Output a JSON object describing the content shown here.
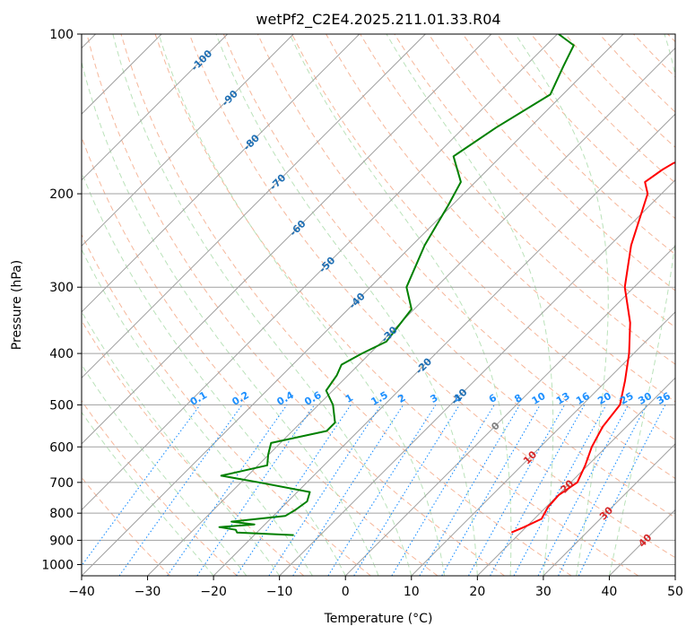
{
  "chart_data": {
    "type": "line",
    "title": "wetPf2_C2E4.2025.211.01.33.R04",
    "xlabel": "Temperature (°C)",
    "ylabel": "Pressure (hPa)",
    "xlim": [
      -40,
      50
    ],
    "ylim": [
      1050,
      100
    ],
    "y_scale": "log",
    "grid": true,
    "x_ticks": [
      -40,
      -30,
      -20,
      -10,
      0,
      10,
      20,
      30,
      40,
      50
    ],
    "y_ticks": [
      100,
      200,
      300,
      400,
      500,
      600,
      700,
      800,
      900,
      1000
    ],
    "colors": {
      "temperature": "#e41a1c",
      "dewpoint": "#008000",
      "dry_adiabat": "#f4a582",
      "moist_adiabat": "#b2dfb2",
      "mixing_ratio": "#1e90ff",
      "isotherm": "#a0a0a0",
      "isotherm_label": "#1f6fb4",
      "warm_label": "#d62728",
      "zero_label": "#808080"
    },
    "series": [
      {
        "key": "temperature",
        "color": "#ff0000",
        "points": [
          [
            18.6,
            870
          ],
          [
            19.7,
            850
          ],
          [
            21.1,
            820
          ],
          [
            20.3,
            780
          ],
          [
            20.1,
            740
          ],
          [
            21.0,
            700
          ],
          [
            19.6,
            650
          ],
          [
            17.8,
            600
          ],
          [
            16.4,
            550
          ],
          [
            15.7,
            500
          ],
          [
            12.8,
            450
          ],
          [
            9.3,
            400
          ],
          [
            4.8,
            350
          ],
          [
            -1.4,
            300
          ],
          [
            -6.8,
            250
          ],
          [
            -12.1,
            200
          ],
          [
            -14.3,
            190
          ],
          [
            -13.5,
            180
          ],
          [
            -12.8,
            175
          ],
          [
            -10.0,
            170
          ],
          [
            -9.8,
            165
          ],
          [
            -16.9,
            150
          ],
          [
            -20.5,
            125
          ],
          [
            -24.1,
            115
          ],
          [
            -29.1,
            100
          ]
        ]
      },
      {
        "key": "dewpoint",
        "color": "#008000",
        "points": [
          [
            -14.0,
            880
          ],
          [
            -23.0,
            870
          ],
          [
            -23.6,
            860
          ],
          [
            -26.5,
            850
          ],
          [
            -21.6,
            840
          ],
          [
            -25.5,
            830
          ],
          [
            -18.2,
            810
          ],
          [
            -17.6,
            790
          ],
          [
            -17.1,
            760
          ],
          [
            -18.1,
            730
          ],
          [
            -27.3,
            700
          ],
          [
            -34.0,
            680
          ],
          [
            -28.6,
            650
          ],
          [
            -30.1,
            620
          ],
          [
            -31.4,
            590
          ],
          [
            -24.8,
            560
          ],
          [
            -24.8,
            540
          ],
          [
            -27.8,
            500
          ],
          [
            -31.0,
            470
          ],
          [
            -31.7,
            440
          ],
          [
            -32.6,
            420
          ],
          [
            -31.2,
            400
          ],
          [
            -29.3,
            380
          ],
          [
            -30.4,
            330
          ],
          [
            -34.5,
            300
          ],
          [
            -38.1,
            250
          ],
          [
            -40.6,
            210
          ],
          [
            -42.2,
            190
          ],
          [
            -47.2,
            170
          ],
          [
            -45.1,
            150
          ],
          [
            -41.9,
            130
          ],
          [
            -44.2,
            115
          ],
          [
            -45.8,
            105
          ],
          [
            -49.8,
            100
          ]
        ]
      }
    ],
    "isotherm_labels": [
      "-100",
      "-90",
      "-80",
      "-70",
      "-60",
      "-50",
      "-40",
      "-30",
      "-20",
      "-10",
      "0",
      "10",
      "20",
      "30",
      "40"
    ],
    "isotherm_label_values": [
      -100,
      -90,
      -80,
      -70,
      -60,
      -50,
      -40,
      -30,
      -20,
      -10,
      0,
      10,
      20,
      30,
      40
    ],
    "mixing_ratio_labels": [
      "0.1",
      "0.2",
      "0.4",
      "0.6",
      "1",
      "1.5",
      "2",
      "3",
      "4",
      "6",
      "8",
      "10",
      "13",
      "16",
      "20",
      "25",
      "30",
      "36"
    ],
    "mixing_ratio_values": [
      0.1,
      0.2,
      0.4,
      0.6,
      1,
      1.5,
      2,
      3,
      4,
      6,
      8,
      10,
      13,
      16,
      20,
      25,
      30,
      36
    ]
  }
}
